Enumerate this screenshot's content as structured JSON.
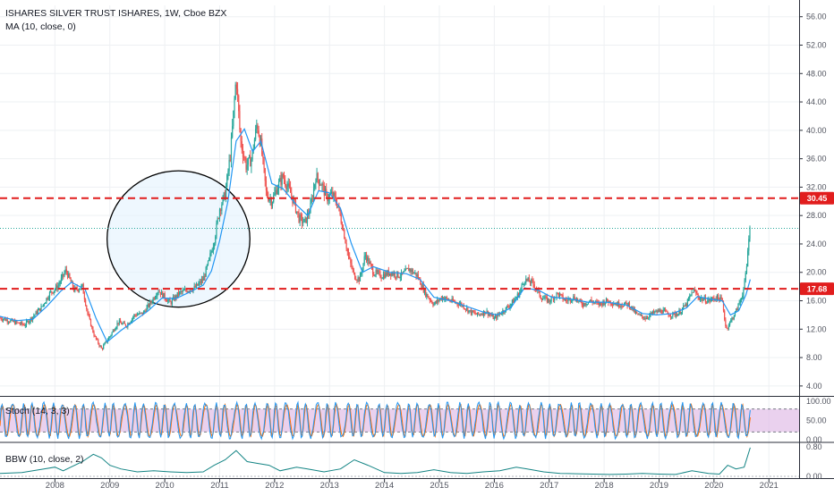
{
  "chart_data": {
    "type": "line",
    "title": "ISHARES SILVER TRUST ISHARES, 1W, Cboe BZX",
    "overlay_label": "MA (10, close, 0)",
    "x_range": [
      2007.0,
      2021.55
    ],
    "y_range": [
      2.6,
      57.6
    ],
    "y_ticks": [
      "56.00",
      "52.00",
      "48.00",
      "44.00",
      "40.00",
      "36.00",
      "32.00",
      "28.00",
      "24.00",
      "20.00",
      "16.00",
      "12.00",
      "8.00",
      "4.00"
    ],
    "y_tick_values": [
      56,
      52,
      48,
      44,
      40,
      36,
      32,
      28,
      24,
      20,
      16,
      12,
      8,
      4
    ],
    "x_ticks": [
      "2008",
      "2009",
      "2010",
      "2011",
      "2012",
      "2013",
      "2014",
      "2015",
      "2016",
      "2017",
      "2018",
      "2019",
      "2020",
      "2021"
    ],
    "x_tick_values": [
      2008,
      2009,
      2010,
      2011,
      2012,
      2013,
      2014,
      2015,
      2016,
      2017,
      2018,
      2019,
      2020,
      2021
    ],
    "price_series": {
      "name": "price",
      "points": [
        [
          2007.0,
          13.6
        ],
        [
          2007.25,
          13.0
        ],
        [
          2007.45,
          12.6
        ],
        [
          2007.6,
          13.8
        ],
        [
          2007.75,
          15.0
        ],
        [
          2007.9,
          17.0
        ],
        [
          2008.05,
          18.0
        ],
        [
          2008.2,
          20.3
        ],
        [
          2008.35,
          17.5
        ],
        [
          2008.5,
          18.0
        ],
        [
          2008.6,
          14.0
        ],
        [
          2008.72,
          11.0
        ],
        [
          2008.85,
          9.2
        ],
        [
          2009.0,
          11.0
        ],
        [
          2009.15,
          13.0
        ],
        [
          2009.3,
          12.5
        ],
        [
          2009.45,
          14.0
        ],
        [
          2009.6,
          14.2
        ],
        [
          2009.75,
          15.8
        ],
        [
          2009.88,
          17.5
        ],
        [
          2010.0,
          16.5
        ],
        [
          2010.1,
          15.7
        ],
        [
          2010.25,
          17.0
        ],
        [
          2010.4,
          17.5
        ],
        [
          2010.55,
          17.8
        ],
        [
          2010.7,
          19.0
        ],
        [
          2010.8,
          21.5
        ],
        [
          2010.9,
          24.5
        ],
        [
          2011.0,
          29.0
        ],
        [
          2011.1,
          31.0
        ],
        [
          2011.2,
          37.0
        ],
        [
          2011.3,
          47.5
        ],
        [
          2011.38,
          38.5
        ],
        [
          2011.48,
          35.0
        ],
        [
          2011.58,
          36.0
        ],
        [
          2011.68,
          41.0
        ],
        [
          2011.75,
          38.0
        ],
        [
          2011.85,
          31.0
        ],
        [
          2011.95,
          30.0
        ],
        [
          2012.05,
          32.0
        ],
        [
          2012.15,
          33.5
        ],
        [
          2012.3,
          31.0
        ],
        [
          2012.45,
          27.5
        ],
        [
          2012.55,
          27.0
        ],
        [
          2012.65,
          29.0
        ],
        [
          2012.75,
          33.5
        ],
        [
          2012.85,
          32.5
        ],
        [
          2012.95,
          30.5
        ],
        [
          2013.05,
          31.0
        ],
        [
          2013.15,
          29.5
        ],
        [
          2013.25,
          26.0
        ],
        [
          2013.35,
          22.0
        ],
        [
          2013.45,
          19.5
        ],
        [
          2013.55,
          19.0
        ],
        [
          2013.65,
          22.5
        ],
        [
          2013.8,
          20.0
        ],
        [
          2013.95,
          19.5
        ],
        [
          2014.1,
          20.0
        ],
        [
          2014.3,
          19.5
        ],
        [
          2014.45,
          20.5
        ],
        [
          2014.6,
          19.5
        ],
        [
          2014.75,
          17.0
        ],
        [
          2014.9,
          15.5
        ],
        [
          2015.05,
          16.5
        ],
        [
          2015.2,
          16.0
        ],
        [
          2015.4,
          15.5
        ],
        [
          2015.55,
          14.5
        ],
        [
          2015.7,
          14.0
        ],
        [
          2015.85,
          14.5
        ],
        [
          2016.0,
          13.5
        ],
        [
          2016.15,
          14.5
        ],
        [
          2016.3,
          15.5
        ],
        [
          2016.45,
          17.0
        ],
        [
          2016.55,
          19.0
        ],
        [
          2016.7,
          18.5
        ],
        [
          2016.85,
          16.5
        ],
        [
          2017.0,
          16.0
        ],
        [
          2017.15,
          17.0
        ],
        [
          2017.3,
          16.0
        ],
        [
          2017.45,
          16.5
        ],
        [
          2017.6,
          15.5
        ],
        [
          2017.75,
          16.0
        ],
        [
          2017.9,
          15.5
        ],
        [
          2018.05,
          16.0
        ],
        [
          2018.25,
          15.5
        ],
        [
          2018.45,
          15.5
        ],
        [
          2018.6,
          14.0
        ],
        [
          2018.75,
          13.6
        ],
        [
          2018.9,
          14.3
        ],
        [
          2019.05,
          14.6
        ],
        [
          2019.2,
          14.0
        ],
        [
          2019.35,
          14.2
        ],
        [
          2019.5,
          15.5
        ],
        [
          2019.62,
          17.5
        ],
        [
          2019.75,
          16.3
        ],
        [
          2019.9,
          16.0
        ],
        [
          2020.05,
          16.5
        ],
        [
          2020.15,
          16.0
        ],
        [
          2020.22,
          12.0
        ],
        [
          2020.28,
          12.8
        ],
        [
          2020.4,
          14.5
        ],
        [
          2020.5,
          16.5
        ],
        [
          2020.55,
          18.0
        ],
        [
          2020.6,
          21.0
        ],
        [
          2020.63,
          25.0
        ],
        [
          2020.66,
          26.2
        ]
      ]
    },
    "ma_series": {
      "name": "MA (10, close, 0)",
      "points": [
        [
          2007.0,
          13.8
        ],
        [
          2007.3,
          13.2
        ],
        [
          2007.6,
          13.4
        ],
        [
          2007.85,
          15.2
        ],
        [
          2008.1,
          17.3
        ],
        [
          2008.3,
          18.6
        ],
        [
          2008.55,
          17.6
        ],
        [
          2008.75,
          13.5
        ],
        [
          2008.95,
          10.2
        ],
        [
          2009.2,
          11.8
        ],
        [
          2009.45,
          13.2
        ],
        [
          2009.7,
          14.6
        ],
        [
          2009.95,
          16.4
        ],
        [
          2010.2,
          16.3
        ],
        [
          2010.45,
          17.2
        ],
        [
          2010.7,
          18.2
        ],
        [
          2010.85,
          20.2
        ],
        [
          2011.0,
          24.5
        ],
        [
          2011.15,
          30.0
        ],
        [
          2011.3,
          38.5
        ],
        [
          2011.45,
          40.2
        ],
        [
          2011.6,
          37.0
        ],
        [
          2011.75,
          38.5
        ],
        [
          2011.95,
          32.5
        ],
        [
          2012.15,
          31.8
        ],
        [
          2012.4,
          29.5
        ],
        [
          2012.6,
          28.0
        ],
        [
          2012.8,
          31.5
        ],
        [
          2013.0,
          31.2
        ],
        [
          2013.2,
          29.0
        ],
        [
          2013.4,
          24.0
        ],
        [
          2013.6,
          20.0
        ],
        [
          2013.8,
          20.8
        ],
        [
          2014.1,
          20.0
        ],
        [
          2014.4,
          19.8
        ],
        [
          2014.65,
          19.0
        ],
        [
          2014.9,
          16.5
        ],
        [
          2015.2,
          16.0
        ],
        [
          2015.5,
          15.2
        ],
        [
          2015.8,
          14.4
        ],
        [
          2016.05,
          14.0
        ],
        [
          2016.3,
          15.0
        ],
        [
          2016.55,
          17.8
        ],
        [
          2016.8,
          17.5
        ],
        [
          2017.05,
          16.5
        ],
        [
          2017.35,
          16.3
        ],
        [
          2017.7,
          15.8
        ],
        [
          2018.05,
          15.8
        ],
        [
          2018.4,
          15.4
        ],
        [
          2018.7,
          14.2
        ],
        [
          2018.95,
          14.0
        ],
        [
          2019.25,
          14.2
        ],
        [
          2019.5,
          15.0
        ],
        [
          2019.7,
          16.6
        ],
        [
          2019.95,
          16.2
        ],
        [
          2020.15,
          16.0
        ],
        [
          2020.3,
          14.0
        ],
        [
          2020.45,
          14.6
        ],
        [
          2020.58,
          16.8
        ],
        [
          2020.66,
          19.0
        ]
      ]
    },
    "horizontal_levels": [
      {
        "label": "30.45",
        "value": 30.45,
        "color": "#e11d1d"
      },
      {
        "label": "17.68",
        "value": 17.68,
        "color": "#e11d1d"
      }
    ],
    "last_price_line": {
      "value": 26.2,
      "color": "#26a69a"
    },
    "circle_annotation": {
      "x_center": 2010.25,
      "y_center": 24.7,
      "x_radius": 1.3,
      "y_radius": 9.6
    },
    "stoch_panel": {
      "label": "Stoch (14, 3, 3)",
      "y_range": [
        -5,
        112
      ],
      "y_ticks": [
        "100.00",
        "50.00",
        "0.00"
      ],
      "y_tick_values": [
        100,
        50,
        0
      ],
      "band": [
        20,
        80
      ],
      "cycles": 74
    },
    "bbw_panel": {
      "label": "BBW (10, close, 2)",
      "y_range": [
        -0.05,
        0.9
      ],
      "y_ticks": [
        "0.80",
        "0.00"
      ],
      "y_tick_values": [
        0.8,
        0.0
      ],
      "points": [
        [
          2007.0,
          0.08
        ],
        [
          2007.4,
          0.1
        ],
        [
          2007.8,
          0.2
        ],
        [
          2008.0,
          0.25
        ],
        [
          2008.15,
          0.15
        ],
        [
          2008.5,
          0.4
        ],
        [
          2008.7,
          0.6
        ],
        [
          2008.85,
          0.5
        ],
        [
          2009.0,
          0.3
        ],
        [
          2009.2,
          0.2
        ],
        [
          2009.5,
          0.12
        ],
        [
          2009.8,
          0.15
        ],
        [
          2010.1,
          0.12
        ],
        [
          2010.4,
          0.1
        ],
        [
          2010.7,
          0.12
        ],
        [
          2010.9,
          0.3
        ],
        [
          2011.1,
          0.45
        ],
        [
          2011.3,
          0.7
        ],
        [
          2011.5,
          0.4
        ],
        [
          2011.7,
          0.35
        ],
        [
          2011.9,
          0.3
        ],
        [
          2012.1,
          0.15
        ],
        [
          2012.4,
          0.25
        ],
        [
          2012.6,
          0.2
        ],
        [
          2012.9,
          0.12
        ],
        [
          2013.2,
          0.2
        ],
        [
          2013.45,
          0.45
        ],
        [
          2013.7,
          0.3
        ],
        [
          2014.0,
          0.1
        ],
        [
          2014.3,
          0.08
        ],
        [
          2014.6,
          0.1
        ],
        [
          2014.9,
          0.18
        ],
        [
          2015.2,
          0.1
        ],
        [
          2015.5,
          0.08
        ],
        [
          2015.8,
          0.12
        ],
        [
          2016.1,
          0.15
        ],
        [
          2016.4,
          0.25
        ],
        [
          2016.6,
          0.2
        ],
        [
          2016.9,
          0.12
        ],
        [
          2017.2,
          0.08
        ],
        [
          2017.5,
          0.07
        ],
        [
          2017.8,
          0.06
        ],
        [
          2018.1,
          0.05
        ],
        [
          2018.4,
          0.06
        ],
        [
          2018.7,
          0.08
        ],
        [
          2019.0,
          0.06
        ],
        [
          2019.3,
          0.05
        ],
        [
          2019.6,
          0.15
        ],
        [
          2019.9,
          0.08
        ],
        [
          2020.1,
          0.06
        ],
        [
          2020.25,
          0.3
        ],
        [
          2020.4,
          0.2
        ],
        [
          2020.55,
          0.25
        ],
        [
          2020.66,
          0.78
        ]
      ]
    },
    "colors": {
      "candle_up": "#26a69a",
      "candle_down": "#ef5350",
      "ma": "#2196f3",
      "stoch_k": "#2196f3",
      "stoch_d": "#ff6d00",
      "stoch_band": "#e1bee7",
      "bbw": "#138484",
      "circle_fill": "#e3f2fd",
      "circle_stroke": "#000000"
    }
  }
}
